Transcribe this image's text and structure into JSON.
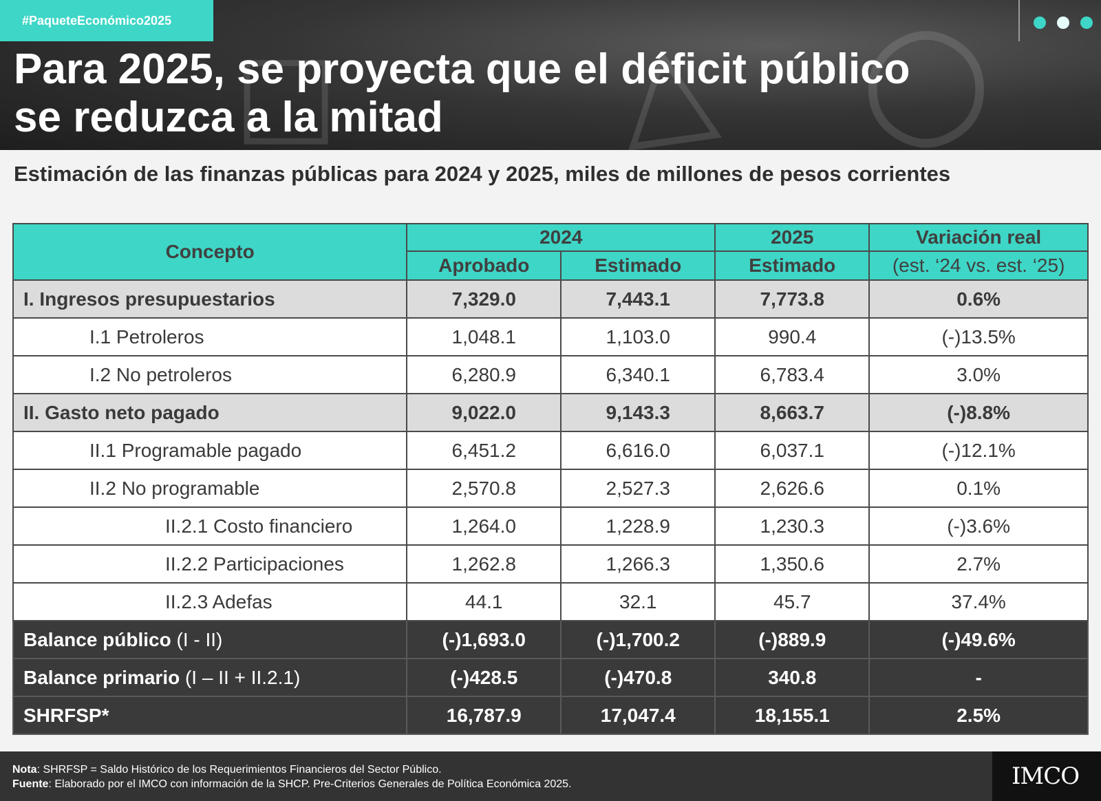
{
  "hashtag": "#PaqueteEconómico2025",
  "headline_line1": "Para 2025, se proyecta que el déficit público",
  "headline_line2": "se reduzca a la mitad",
  "subtitle": "Estimación de las finanzas públicas para 2024 y 2025, miles de millones de pesos corrientes",
  "colors": {
    "accent": "#3ed6c6",
    "dark_row": "#3a3a3a",
    "grey_row": "#dcdcdc",
    "footer": "#333333"
  },
  "chart_data": {
    "type": "table",
    "header": {
      "concepto": "Concepto",
      "year_2024": "2024",
      "year_2025": "2025",
      "aprobado": "Aprobado",
      "estimado_2024": "Estimado",
      "estimado_2025": "Estimado",
      "variacion": "Variación real",
      "variacion_sub": "(est. ‘24 vs. est. ‘25)"
    },
    "rows": [
      {
        "concept": "I. Ingresos presupuestarios",
        "concept_suffix": "",
        "aprobado": "7,329.0",
        "estimado_2024": "7,443.1",
        "estimado_2025": "7,773.8",
        "variacion": "0.6%"
      },
      {
        "concept": "I.1 Petroleros",
        "concept_suffix": "",
        "aprobado": "1,048.1",
        "estimado_2024": "1,103.0",
        "estimado_2025": "990.4",
        "variacion": "(-)13.5%"
      },
      {
        "concept": "I.2 No petroleros",
        "concept_suffix": "",
        "aprobado": "6,280.9",
        "estimado_2024": "6,340.1",
        "estimado_2025": "6,783.4",
        "variacion": "3.0%"
      },
      {
        "concept": "II. Gasto neto pagado",
        "concept_suffix": "",
        "aprobado": "9,022.0",
        "estimado_2024": "9,143.3",
        "estimado_2025": "8,663.7",
        "variacion": "(-)8.8%"
      },
      {
        "concept": "II.1 Programable pagado",
        "concept_suffix": "",
        "aprobado": "6,451.2",
        "estimado_2024": "6,616.0",
        "estimado_2025": "6,037.1",
        "variacion": "(-)12.1%"
      },
      {
        "concept": "II.2 No programable",
        "concept_suffix": "",
        "aprobado": "2,570.8",
        "estimado_2024": "2,527.3",
        "estimado_2025": "2,626.6",
        "variacion": "0.1%"
      },
      {
        "concept": "II.2.1 Costo financiero",
        "concept_suffix": "",
        "aprobado": "1,264.0",
        "estimado_2024": "1,228.9",
        "estimado_2025": "1,230.3",
        "variacion": "(-)3.6%"
      },
      {
        "concept": "II.2.2 Participaciones",
        "concept_suffix": "",
        "aprobado": "1,262.8",
        "estimado_2024": "1,266.3",
        "estimado_2025": "1,350.6",
        "variacion": "2.7%"
      },
      {
        "concept": "II.2.3 Adefas",
        "concept_suffix": "",
        "aprobado": "44.1",
        "estimado_2024": "32.1",
        "estimado_2025": "45.7",
        "variacion": "37.4%"
      },
      {
        "concept": "Balance público",
        "concept_suffix": "(I - II)",
        "aprobado": "(-)1,693.0",
        "estimado_2024": "(-)1,700.2",
        "estimado_2025": "(-)889.9",
        "variacion": "(-)49.6%"
      },
      {
        "concept": "Balance primario",
        "concept_suffix": "(I – II + II.2.1)",
        "aprobado": "(-)428.5",
        "estimado_2024": "(-)470.8",
        "estimado_2025": "340.8",
        "variacion": "-"
      },
      {
        "concept": "SHRFSP*",
        "concept_suffix": "",
        "aprobado": "16,787.9",
        "estimado_2024": "17,047.4",
        "estimado_2025": "18,155.1",
        "variacion": "2.5%"
      }
    ]
  },
  "footer": {
    "nota_label": "Nota",
    "nota_text": ": SHRFSP = Saldo Histórico de los Requerimientos Financieros del Sector Público.",
    "fuente_label": "Fuente",
    "fuente_text": ": Elaborado por el IMCO con información de la SHCP. Pre-Criterios Generales de Política Económica 2025.",
    "logo": "IMCO"
  }
}
